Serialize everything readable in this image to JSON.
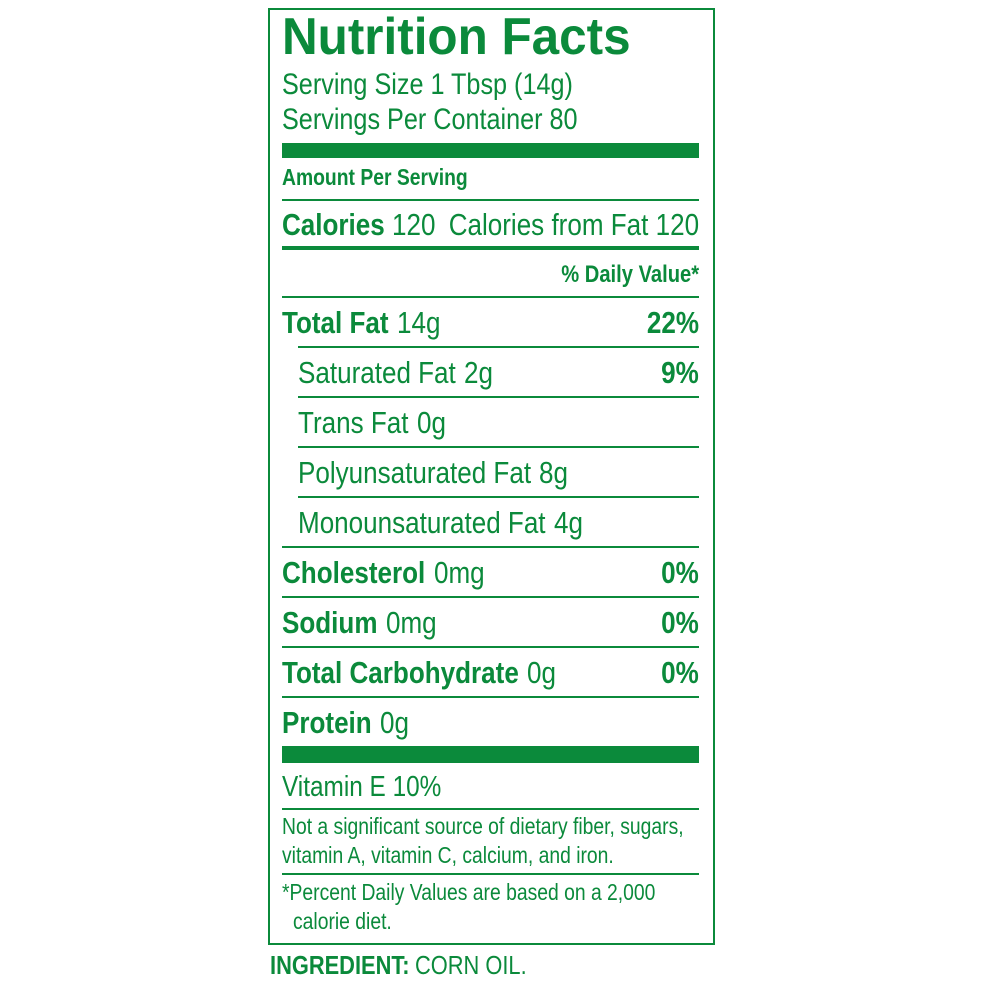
{
  "title": "Nutrition Facts",
  "serving_size": "Serving Size 1 Tbsp (14g)",
  "servings_per_container": "Servings Per Container 80",
  "amount_per_serving": "Amount Per Serving",
  "calories": {
    "label": "Calories",
    "value": "120",
    "from_fat": "Calories from Fat 120"
  },
  "daily_value_header": "% Daily Value*",
  "rows": [
    {
      "name": "Total Fat",
      "amount": "14g",
      "dv": "22%",
      "bold": true,
      "indent": false
    },
    {
      "name": "Saturated Fat",
      "amount": "2g",
      "dv": "9%",
      "bold": false,
      "indent": true
    },
    {
      "name": "Trans Fat",
      "amount": "0g",
      "bold": false,
      "indent": true
    },
    {
      "name": "Polyunsaturated Fat",
      "amount": "8g",
      "bold": false,
      "indent": true
    },
    {
      "name": "Monounsaturated Fat",
      "amount": "4g",
      "bold": false,
      "indent": true
    },
    {
      "name": "Cholesterol",
      "amount": "0mg",
      "dv": "0%",
      "bold": true,
      "indent": false
    },
    {
      "name": "Sodium",
      "amount": "0mg",
      "dv": "0%",
      "bold": true,
      "indent": false
    },
    {
      "name": "Total Carbohydrate",
      "amount": "0g",
      "dv": "0%",
      "bold": true,
      "indent": false
    },
    {
      "name": "Protein",
      "amount": "0g",
      "bold": true,
      "indent": false
    }
  ],
  "vitamin": "Vitamin E 10%",
  "note": [
    "Not a significant source of dietary fiber, sugars,",
    "vitamin A, vitamin C, calcium, and iron."
  ],
  "footnote": [
    "*Percent Daily Values are based on a 2,000",
    "calorie diet."
  ],
  "ingredient": {
    "label": "INGREDIENT:",
    "text": "CORN OIL."
  }
}
